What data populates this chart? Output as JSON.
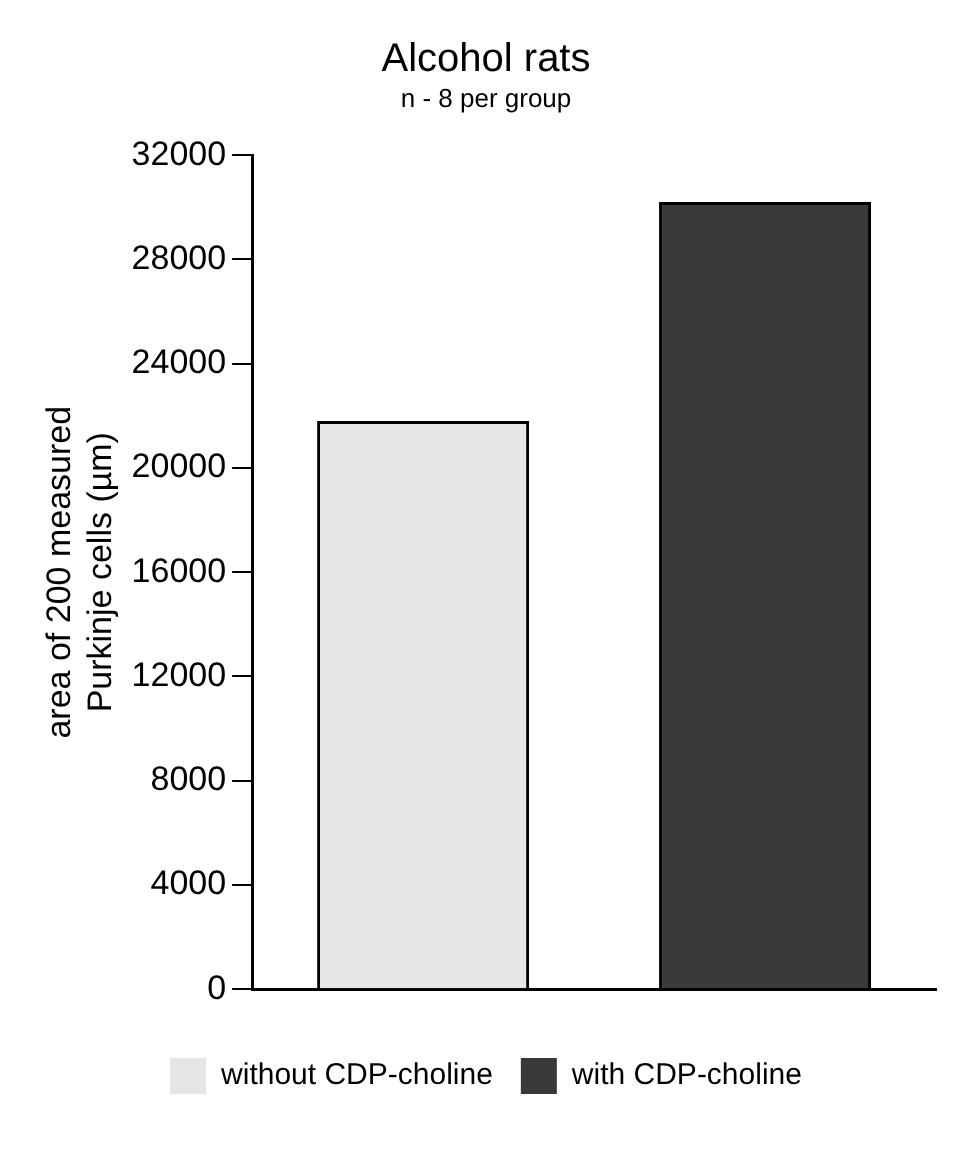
{
  "chart_data": {
    "type": "bar",
    "title": "Alcohol rats",
    "subtitle": "n - 8 per group",
    "ylabel": "area of 200 measured\nPurkinje cells (µm)",
    "categories": [
      null,
      null
    ],
    "series": [
      {
        "name": "without CDP-choline",
        "color": "#e6e6e6",
        "values": [
          21800,
          null
        ]
      },
      {
        "name": "with CDP-choline",
        "color": "#3a3a3a",
        "values": [
          null,
          30200
        ]
      }
    ],
    "ylim": [
      0,
      32000
    ],
    "yticks": [
      0,
      4000,
      8000,
      12000,
      16000,
      20000,
      24000,
      28000,
      32000
    ],
    "grid": false,
    "legend": "bottom"
  }
}
